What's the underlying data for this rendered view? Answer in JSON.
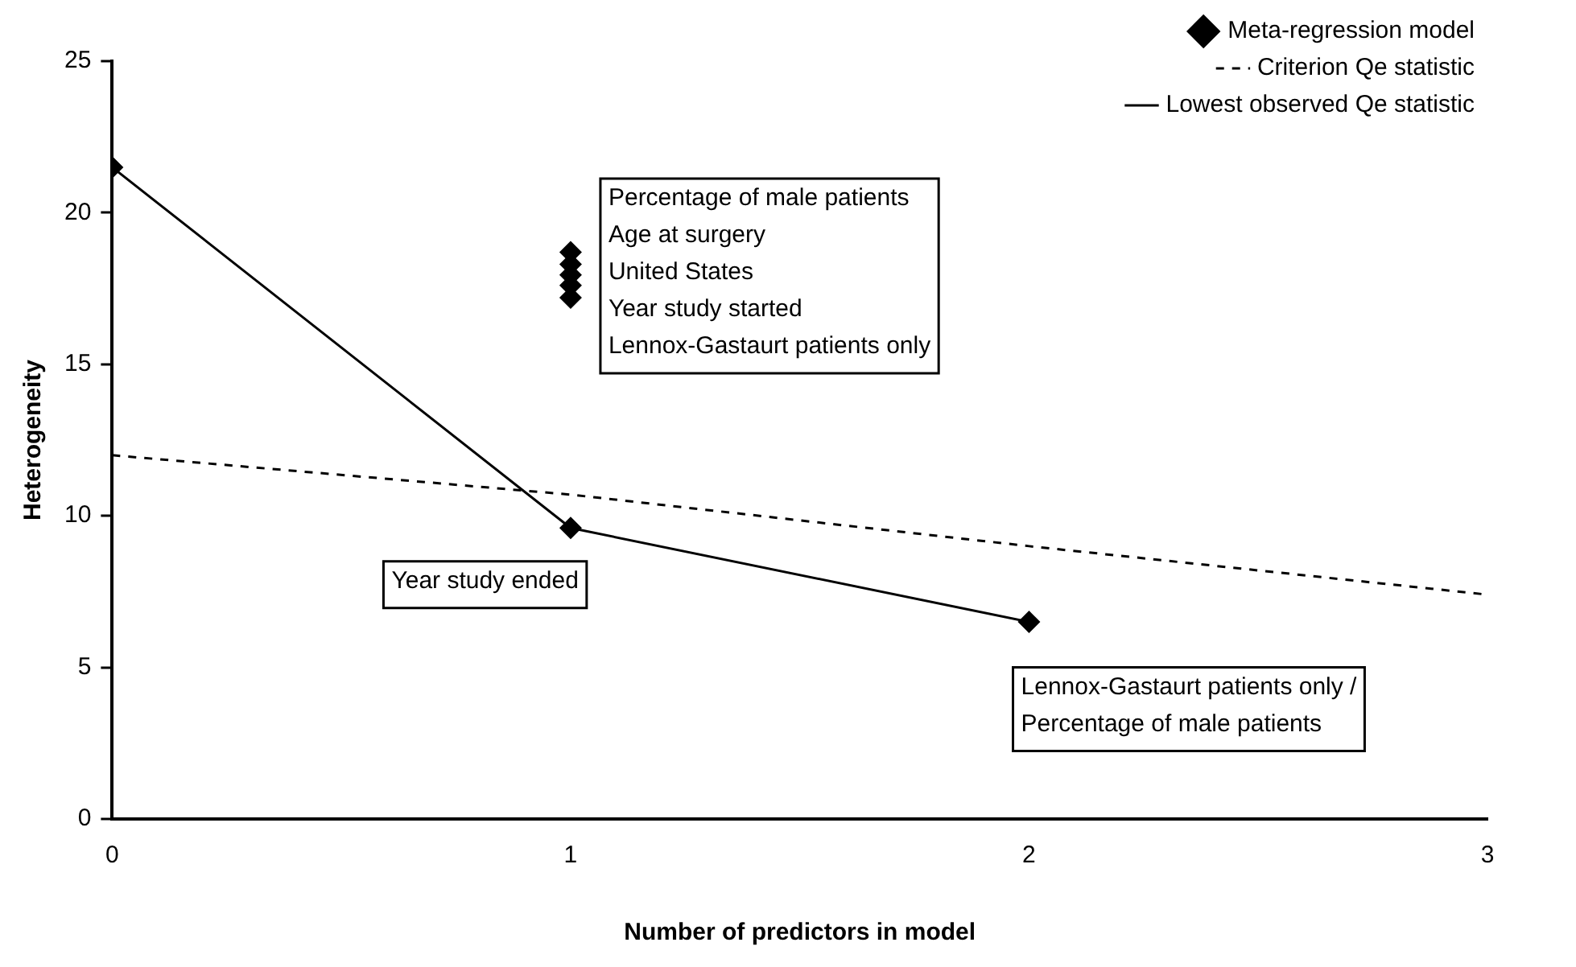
{
  "chart_data": {
    "type": "line",
    "xlabel": "Number of predictors in model",
    "ylabel": "Heterogeneity",
    "xlim": [
      0,
      3
    ],
    "xticks": [
      0,
      1,
      2,
      3
    ],
    "ylim": [
      0,
      25
    ],
    "yticks": [
      0,
      5,
      10,
      15,
      20,
      25
    ],
    "grid": false,
    "legend": "top right",
    "series": [
      {
        "name": "Meta-regression model",
        "type": "scatter",
        "marker": "diamond",
        "color": "#000000",
        "x": [
          0,
          1,
          1,
          1,
          1,
          1,
          1,
          2
        ],
        "values": [
          21.5,
          9.6,
          18.7,
          18.3,
          17.95,
          17.6,
          17.2,
          6.5
        ]
      },
      {
        "name": "Criterion Qe statistic",
        "type": "line",
        "marker": "none",
        "line_style": "dashed",
        "color": "#000000",
        "x": [
          0,
          1,
          2,
          3
        ],
        "values": [
          12,
          10.7,
          9.0,
          7.4
        ]
      },
      {
        "name": "Lowest observed Qe statistic",
        "type": "line",
        "marker": "none",
        "line_style": "solid",
        "color": "#000000",
        "x": [
          0,
          1,
          2
        ],
        "values": [
          21.5,
          9.6,
          6.5
        ]
      }
    ],
    "annotations": [
      "Percentage of male patients\nAge at surgery\nUnited States\nYear study started\nLennox-Gastaurt patients only",
      "Year study ended",
      "Lennox-Gastaurt patients only /\nPercentage of male patients"
    ]
  }
}
